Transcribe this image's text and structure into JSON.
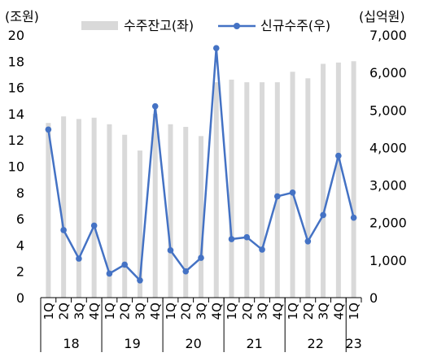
{
  "chart_data": {
    "type": "bar+line",
    "categories": [
      "1Q",
      "2Q",
      "3Q",
      "4Q",
      "1Q",
      "2Q",
      "3Q",
      "4Q",
      "1Q",
      "2Q",
      "3Q",
      "4Q",
      "1Q",
      "2Q",
      "3Q",
      "4Q",
      "1Q",
      "2Q",
      "3Q",
      "4Q",
      "1Q"
    ],
    "year_groups": [
      {
        "label": "18",
        "count": 4
      },
      {
        "label": "19",
        "count": 4
      },
      {
        "label": "20",
        "count": 4
      },
      {
        "label": "21",
        "count": 4
      },
      {
        "label": "22",
        "count": 4
      },
      {
        "label": "23",
        "count": 1
      }
    ],
    "left_axis": {
      "unit_label": "(조원)",
      "min": 0,
      "max": 20,
      "ticks": [
        "0",
        "2",
        "4",
        "6",
        "8",
        "10",
        "12",
        "14",
        "16",
        "18",
        "20"
      ]
    },
    "right_axis": {
      "unit_label": "(십억원)",
      "min": 0,
      "max": 7000,
      "ticks": [
        "0",
        "1,000",
        "2,000",
        "3,000",
        "4,000",
        "5,000",
        "6,000",
        "7,000"
      ]
    },
    "series": [
      {
        "name": "수주잔고(좌)",
        "kind": "bar",
        "axis": "left",
        "color": "#d9d9d9",
        "values": [
          13.3,
          13.8,
          13.6,
          13.7,
          13.2,
          12.4,
          11.2,
          14.0,
          13.2,
          13.0,
          12.3,
          16.4,
          16.6,
          16.4,
          16.4,
          16.4,
          17.2,
          16.7,
          17.8,
          17.9,
          18.0
        ]
      },
      {
        "name": "신규수주(우)",
        "kind": "line",
        "axis": "right",
        "color": "#4472c4",
        "values": [
          4480,
          1800,
          1040,
          1920,
          640,
          880,
          460,
          5100,
          1260,
          700,
          1060,
          6650,
          1560,
          1610,
          1280,
          2700,
          2800,
          1500,
          2200,
          3780,
          2130
        ]
      }
    ],
    "legend_position": "top"
  }
}
